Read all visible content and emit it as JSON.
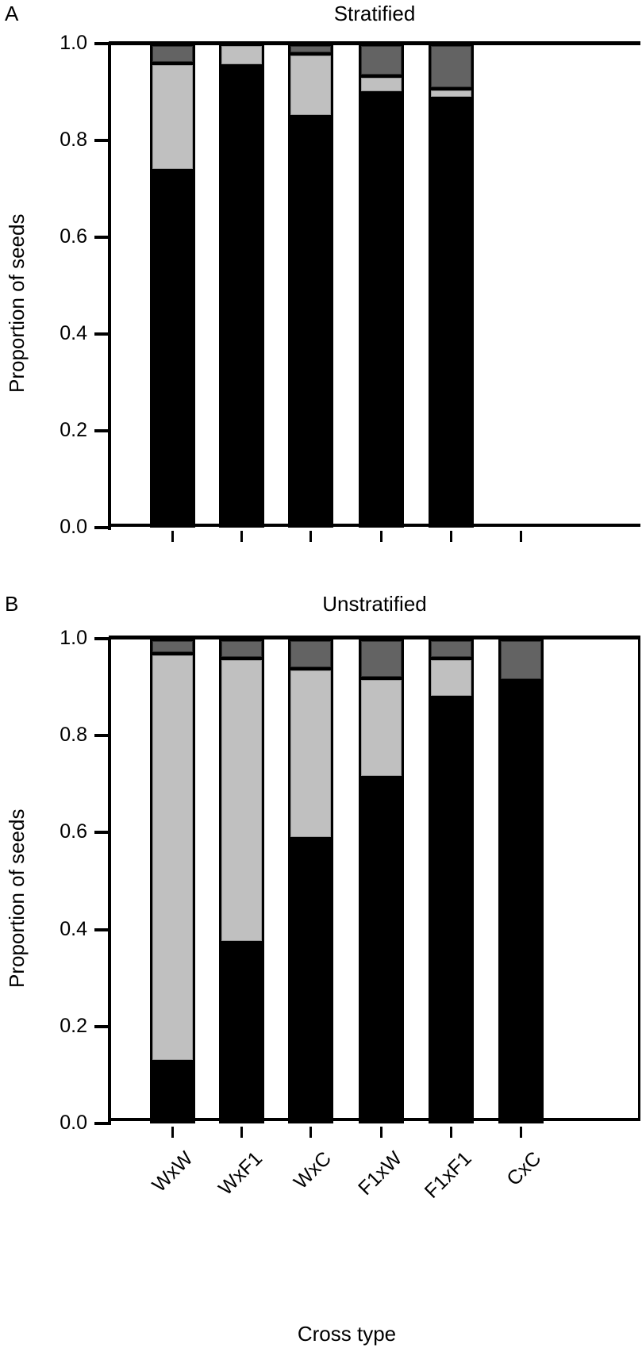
{
  "chart_data": [
    {
      "type": "bar",
      "stacked": true,
      "panel": "A",
      "title": "Stratified",
      "xlabel": "Cross type",
      "ylabel": "Proportion of seeds",
      "ylim": [
        0,
        1.0
      ],
      "yticks": [
        "0.0",
        "0.2",
        "0.4",
        "0.6",
        "0.8",
        "1.0"
      ],
      "categories": [
        "WxW",
        "WxF1",
        "WxC",
        "F1xW",
        "F1xF1",
        "CxC"
      ],
      "series": [
        {
          "name": "black",
          "color": "#000000",
          "values": [
            0.74,
            0.955,
            0.85,
            0.9,
            0.888,
            0
          ]
        },
        {
          "name": "light gray",
          "color": "#c0c0c0",
          "values": [
            0.22,
            0.045,
            0.13,
            0.035,
            0.02,
            0
          ]
        },
        {
          "name": "dark gray",
          "color": "#636363",
          "values": [
            0.04,
            0.0,
            0.02,
            0.065,
            0.092,
            0
          ]
        }
      ]
    },
    {
      "type": "bar",
      "stacked": true,
      "panel": "B",
      "title": "Unstratified",
      "xlabel": "Cross type",
      "ylabel": "Proportion of seeds",
      "ylim": [
        0,
        1.0
      ],
      "yticks": [
        "0.0",
        "0.2",
        "0.4",
        "0.6",
        "0.8",
        "1.0"
      ],
      "categories": [
        "WxW",
        "WxF1",
        "WxC",
        "F1xW",
        "F1xF1",
        "CxC"
      ],
      "series": [
        {
          "name": "black",
          "color": "#000000",
          "values": [
            0.13,
            0.375,
            0.59,
            0.715,
            0.88,
            0.915
          ]
        },
        {
          "name": "light gray",
          "color": "#c0c0c0",
          "values": [
            0.84,
            0.585,
            0.35,
            0.205,
            0.08,
            0.0
          ]
        },
        {
          "name": "dark gray",
          "color": "#636363",
          "values": [
            0.03,
            0.04,
            0.06,
            0.08,
            0.04,
            0.085
          ]
        }
      ]
    }
  ],
  "panels": {
    "a": {
      "letter": "A",
      "title": "Stratified"
    },
    "b": {
      "letter": "B",
      "title": "Unstratified"
    }
  },
  "axis": {
    "ylabel": "Proportion of seeds",
    "xlabel": "Cross type",
    "yticks": [
      "1.0",
      "0.8",
      "0.6",
      "0.4",
      "0.2",
      "0.0"
    ],
    "xticks": [
      "WxW",
      "WxF1",
      "WxC",
      "F1xW",
      "F1xF1",
      "CxC"
    ]
  }
}
